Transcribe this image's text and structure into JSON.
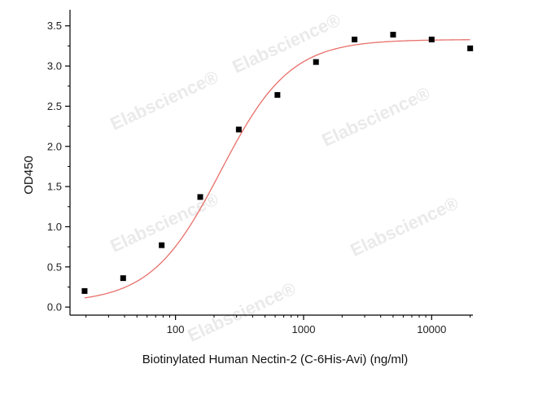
{
  "chart_data": {
    "type": "scatter",
    "xlabel": "Biotinylated Human Nectin-2 (C-6His-Avi) (ng/ml)",
    "ylabel": "OD450",
    "x_scale": "log",
    "xlim": [
      15,
      21000
    ],
    "ylim": [
      -0.1,
      3.7
    ],
    "x_ticks": [
      100,
      1000,
      10000
    ],
    "x_tick_labels": [
      "100",
      "1000",
      "10000"
    ],
    "y_ticks": [
      0.0,
      0.5,
      1.0,
      1.5,
      2.0,
      2.5,
      3.0,
      3.5
    ],
    "y_tick_labels": [
      "0.0",
      "0.5",
      "1.0",
      "1.5",
      "2.0",
      "2.5",
      "3.0",
      "3.5"
    ],
    "points": [
      {
        "x": 19.5,
        "y": 0.2
      },
      {
        "x": 39,
        "y": 0.36
      },
      {
        "x": 78,
        "y": 0.77
      },
      {
        "x": 156,
        "y": 1.37
      },
      {
        "x": 312,
        "y": 2.21
      },
      {
        "x": 625,
        "y": 2.64
      },
      {
        "x": 1250,
        "y": 3.05
      },
      {
        "x": 2500,
        "y": 3.33
      },
      {
        "x": 5000,
        "y": 3.39
      },
      {
        "x": 10000,
        "y": 3.33
      },
      {
        "x": 20000,
        "y": 3.22
      }
    ],
    "fit_curve": {
      "model": "4PL",
      "bottom": 0.05,
      "top": 3.33,
      "ec50": 225,
      "hill": 1.6,
      "color": "#e8706a"
    },
    "marker_color": "#000000",
    "grid": false,
    "legend": "none"
  },
  "watermark": {
    "text": "Elabscience",
    "registered_mark": "®"
  }
}
